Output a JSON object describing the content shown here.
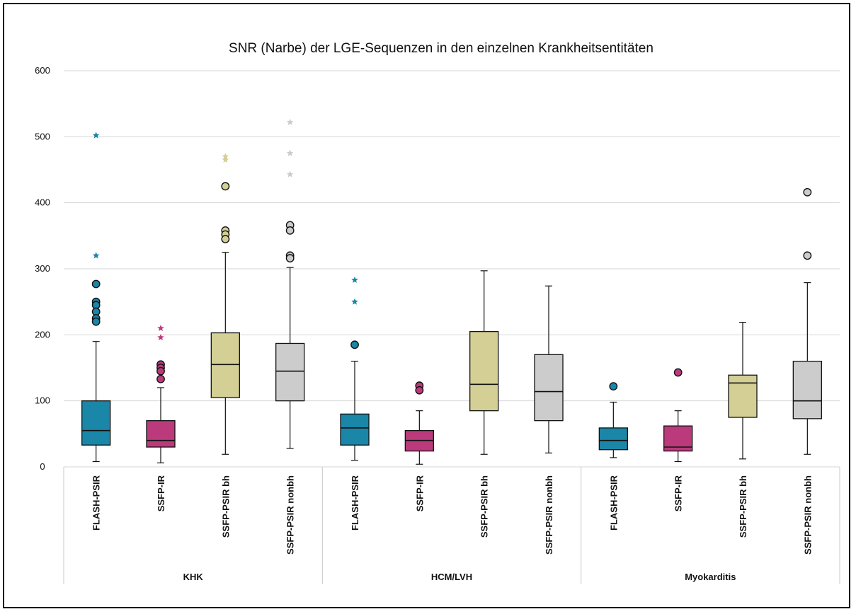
{
  "chart_data": {
    "type": "box",
    "title": "SNR (Narbe) der LGE-Sequenzen in den einzelnen Krankheitsentitäten",
    "ylim": [
      0,
      600
    ],
    "yticks": [
      0,
      100,
      200,
      300,
      400,
      500,
      600
    ],
    "grid": true,
    "groups": [
      {
        "name": "KHK",
        "boxes": [
          {
            "label": "FLASH-PSIR",
            "color": "#1a86a8",
            "min": 8,
            "q1": 33,
            "median": 55,
            "q3": 100,
            "max": 190,
            "outliers": [
              277,
              250,
              245,
              235,
              225,
              220
            ],
            "extremes": [
              320,
              502
            ]
          },
          {
            "label": "SSFP-IR",
            "color": "#bb3a7c",
            "min": 6,
            "q1": 30,
            "median": 40,
            "q3": 70,
            "max": 120,
            "outliers": [
              155,
              150,
              145,
              133
            ],
            "extremes": [
              210,
              196
            ]
          },
          {
            "label": "SSFP-PSIR bh",
            "color": "#d4cf95",
            "min": 19,
            "q1": 105,
            "median": 155,
            "q3": 203,
            "max": 325,
            "outliers": [
              425,
              358,
              352,
              345
            ],
            "extremes": [
              470,
              465
            ]
          },
          {
            "label": "SSFP-PSIR nonbh",
            "color": "#cccccc",
            "min": 28,
            "q1": 100,
            "median": 145,
            "q3": 187,
            "max": 302,
            "outliers": [
              366,
              358,
              320,
              316
            ],
            "extremes": [
              522,
              475,
              443
            ]
          }
        ]
      },
      {
        "name": "HCM/LVH",
        "boxes": [
          {
            "label": "FLASH-PSIR",
            "color": "#1a86a8",
            "min": 10,
            "q1": 33,
            "median": 59,
            "q3": 80,
            "max": 160,
            "outliers": [
              185
            ],
            "extremes": [
              283,
              250
            ]
          },
          {
            "label": "SSFP-IR",
            "color": "#bb3a7c",
            "min": 4,
            "q1": 24,
            "median": 40,
            "q3": 55,
            "max": 85,
            "outliers": [
              123,
              116
            ],
            "extremes": []
          },
          {
            "label": "SSFP-PSIR bh",
            "color": "#d4cf95",
            "min": 19,
            "q1": 85,
            "median": 125,
            "q3": 205,
            "max": 297,
            "outliers": [],
            "extremes": []
          },
          {
            "label": "SSFP-PSIR nonbh",
            "color": "#cccccc",
            "min": 21,
            "q1": 70,
            "median": 114,
            "q3": 170,
            "max": 274,
            "outliers": [],
            "extremes": []
          }
        ]
      },
      {
        "name": "Myokarditis",
        "boxes": [
          {
            "label": "FLASH-PSIR",
            "color": "#1a86a8",
            "min": 14,
            "q1": 26,
            "median": 40,
            "q3": 59,
            "max": 98,
            "outliers": [
              122
            ],
            "extremes": []
          },
          {
            "label": "SSFP-IR",
            "color": "#bb3a7c",
            "min": 8,
            "q1": 24,
            "median": 30,
            "q3": 62,
            "max": 85,
            "outliers": [
              143
            ],
            "extremes": []
          },
          {
            "label": "SSFP-PSIR bh",
            "color": "#d4cf95",
            "min": 12,
            "q1": 75,
            "median": 127,
            "q3": 139,
            "max": 219,
            "outliers": [],
            "extremes": []
          },
          {
            "label": "SSFP-PSIR nonbh",
            "color": "#cccccc",
            "min": 19,
            "q1": 73,
            "median": 100,
            "q3": 160,
            "max": 279,
            "outliers": [
              416,
              320
            ],
            "extremes": []
          }
        ]
      }
    ]
  }
}
